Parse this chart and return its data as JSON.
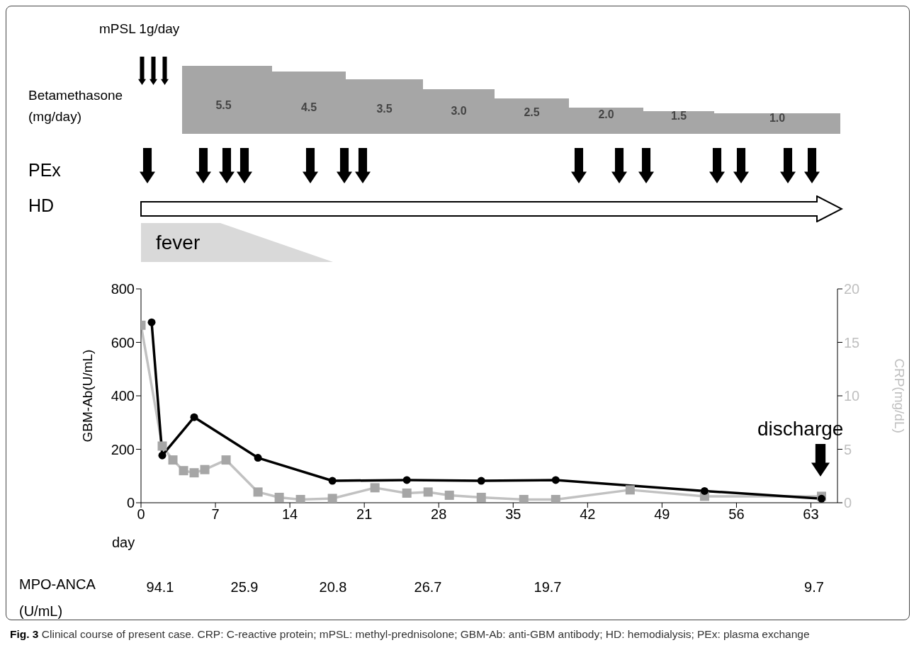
{
  "chart_data": {
    "type": "line",
    "xlabel": "day",
    "ylabel": "GBM-Ab(U/mL)",
    "y2label": "CRP(mg/dL)",
    "xlim": [
      0,
      65.5
    ],
    "xticks": [
      0,
      7,
      14,
      21,
      28,
      35,
      42,
      49,
      56,
      63
    ],
    "ylim": [
      0,
      800
    ],
    "yticks": [
      0,
      200,
      400,
      600,
      800
    ],
    "y2lim": [
      0,
      20
    ],
    "y2ticks": [
      0,
      5,
      10,
      15,
      20
    ],
    "line_style": "solid",
    "series": [
      {
        "color": "#000000",
        "marker": "circle",
        "axis": "y",
        "x": [
          1,
          2,
          5,
          11,
          18,
          25,
          32,
          39,
          53,
          64
        ],
        "values": [
          675,
          177,
          320,
          168,
          82,
          85,
          82,
          85,
          44,
          15
        ]
      },
      {
        "color": "#a6a6a6",
        "marker": "square",
        "axis": "y2",
        "x": [
          0,
          2,
          3,
          4,
          5,
          6,
          8,
          11,
          13,
          15,
          18,
          22,
          25,
          27,
          29,
          32,
          36,
          39,
          46,
          53,
          64
        ],
        "values": [
          16.6,
          5.3,
          4.0,
          3.0,
          2.8,
          3.1,
          4.0,
          1.0,
          0.5,
          0.3,
          0.4,
          1.4,
          0.9,
          1.0,
          0.7,
          0.5,
          0.3,
          0.3,
          1.2,
          0.6,
          0.6
        ]
      }
    ],
    "annotations": [
      "mPSL 1g/day",
      "Betamethasone (mg/day)",
      "5.5",
      "4.5",
      "3.5",
      "3.0",
      "2.5",
      "2.0",
      "1.5",
      "1.0",
      "PEx",
      "HD",
      "fever",
      "discharge",
      "MPO-ANCA (U/mL)",
      "94.1",
      "25.9",
      "20.8",
      "26.7",
      "19.7",
      "9.7",
      "Fig. 3",
      "Clinical course of present case. CRP: C-reactive protein; mPSL: methyl-prednisolone; GBM-Ab: anti-GBM antibody; HD: hemodialysis; PEx: plasma exchange"
    ]
  }
}
